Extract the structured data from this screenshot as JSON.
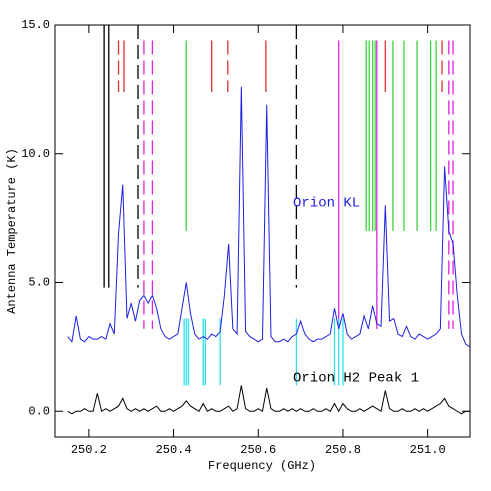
{
  "chart_data": {
    "type": "line",
    "xlabel": "Frequency (GHz)",
    "ylabel": "Antenna Temperature (K)",
    "xlim": [
      250.12,
      251.1
    ],
    "ylim": [
      -1,
      15
    ],
    "xticks": [
      250.2,
      250.4,
      250.6,
      250.8,
      {
        "value": 251,
        "label": "251.0"
      }
    ],
    "yticks": [
      {
        "value": 0,
        "label": "0.0"
      },
      {
        "value": 5,
        "label": "5.0"
      },
      {
        "value": 10,
        "label": "10.0"
      },
      {
        "value": 15,
        "label": "15.0"
      }
    ],
    "x": [
      250.15,
      250.16,
      250.17,
      250.18,
      250.19,
      250.2,
      250.21,
      250.22,
      250.23,
      250.24,
      250.25,
      250.26,
      250.27,
      250.28,
      250.29,
      250.3,
      250.31,
      250.32,
      250.33,
      250.34,
      250.35,
      250.36,
      250.37,
      250.38,
      250.39,
      250.4,
      250.41,
      250.42,
      250.43,
      250.44,
      250.45,
      250.46,
      250.47,
      250.48,
      250.49,
      250.5,
      250.51,
      250.52,
      250.53,
      250.54,
      250.55,
      250.56,
      250.57,
      250.58,
      250.59,
      250.6,
      250.61,
      250.62,
      250.63,
      250.64,
      250.65,
      250.66,
      250.67,
      250.68,
      250.69,
      250.7,
      250.71,
      250.72,
      250.73,
      250.74,
      250.75,
      250.76,
      250.77,
      250.78,
      250.79,
      250.8,
      250.81,
      250.82,
      250.83,
      250.84,
      250.85,
      250.86,
      250.87,
      250.88,
      250.89,
      250.9,
      250.91,
      250.92,
      250.93,
      250.94,
      250.95,
      250.96,
      250.97,
      250.98,
      250.99,
      251,
      251.01,
      251.02,
      251.03,
      251.04,
      251.05,
      251.06,
      251.07,
      251.08,
      251.09,
      251.1
    ],
    "series": [
      {
        "name": "Orion KL",
        "color": "#2020e0",
        "values": [
          2.9,
          2.7,
          3.7,
          2.8,
          2.7,
          2.9,
          2.8,
          2.8,
          2.9,
          2.8,
          3.4,
          3.0,
          6.9,
          8.8,
          3.6,
          4.2,
          3.5,
          4.3,
          4.5,
          4.2,
          4.5,
          4.0,
          3.2,
          2.9,
          2.8,
          2.9,
          3.0,
          4.0,
          5.0,
          3.8,
          3.0,
          2.8,
          2.9,
          2.8,
          3.0,
          2.9,
          3.1,
          4.5,
          6.5,
          3.2,
          3.0,
          12.6,
          3.1,
          2.9,
          2.8,
          2.7,
          2.8,
          11.9,
          2.9,
          2.7,
          2.7,
          2.8,
          2.7,
          2.9,
          3.0,
          3.5,
          3.0,
          2.8,
          2.7,
          2.8,
          2.8,
          2.9,
          3.0,
          4.0,
          3.2,
          3.8,
          3.0,
          2.8,
          2.9,
          3.0,
          3.7,
          3.2,
          4.1,
          3.4,
          3.3,
          8.0,
          3.5,
          3.6,
          3.0,
          2.9,
          3.3,
          2.9,
          2.8,
          3.0,
          2.9,
          2.8,
          2.9,
          3.0,
          3.2,
          9.5,
          7.0,
          6.5,
          4.5,
          3.0,
          2.6,
          2.5
        ]
      },
      {
        "name": "Orion H2 Peak 1",
        "color": "#000000",
        "values": [
          0.0,
          -0.1,
          0.0,
          0.0,
          0.1,
          0.0,
          0.0,
          0.7,
          0.0,
          0.1,
          0.0,
          0.1,
          0.2,
          0.5,
          0.1,
          0.0,
          0.1,
          0.0,
          0.1,
          0.0,
          0.1,
          0.2,
          0.0,
          0.0,
          0.1,
          0.0,
          0.1,
          0.2,
          0.4,
          0.2,
          0.1,
          0.0,
          0.3,
          0.0,
          0.1,
          0.0,
          0.0,
          0.1,
          0.2,
          0.0,
          0.1,
          1.0,
          0.1,
          0.0,
          0.0,
          0.1,
          0.0,
          0.9,
          0.1,
          0.0,
          0.0,
          0.1,
          0.0,
          0.1,
          0.0,
          0.1,
          0.0,
          0.0,
          0.1,
          0.0,
          0.0,
          0.1,
          0.0,
          0.3,
          0.0,
          0.3,
          0.1,
          0.0,
          0.0,
          0.1,
          0.0,
          0.1,
          0.2,
          0.1,
          0.0,
          0.8,
          0.1,
          0.0,
          0.0,
          0.1,
          0.0,
          0.0,
          0.1,
          0.0,
          0.1,
          0.0,
          0.1,
          0.2,
          0.3,
          0.5,
          0.2,
          0.1,
          0.0,
          -0.1,
          0.0,
          0.0
        ]
      }
    ],
    "line_markers": [
      {
        "x": 250.236,
        "color": "#000000",
        "dashed": false
      },
      {
        "x": 250.247,
        "color": "#000000",
        "dashed": false
      },
      {
        "x": 250.316,
        "color": "#000000",
        "dashed": true
      },
      {
        "x": 250.69,
        "color": "#000000",
        "dashed": true
      },
      {
        "x": 250.27,
        "color": "#e03030",
        "dashed": true
      },
      {
        "x": 250.283,
        "color": "#e03030",
        "dashed": false
      },
      {
        "x": 250.49,
        "color": "#e03030",
        "dashed": false
      },
      {
        "x": 250.528,
        "color": "#e03030",
        "dashed": true
      },
      {
        "x": 250.618,
        "color": "#e03030",
        "dashed": false
      },
      {
        "x": 250.9,
        "color": "#e03030",
        "dashed": false
      },
      {
        "x": 251.034,
        "color": "#e03030",
        "dashed": true
      },
      {
        "x": 250.33,
        "color": "#e020e0",
        "dashed": true
      },
      {
        "x": 250.35,
        "color": "#e020e0",
        "dashed": true
      },
      {
        "x": 250.79,
        "color": "#e020e0",
        "dashed": false
      },
      {
        "x": 250.88,
        "color": "#e020e0",
        "dashed": false
      },
      {
        "x": 251.05,
        "color": "#e020e0",
        "dashed": true
      },
      {
        "x": 251.06,
        "color": "#e020e0",
        "dashed": true
      },
      {
        "x": 250.43,
        "color": "#40d040",
        "dashed": false
      },
      {
        "x": 250.855,
        "color": "#40d040",
        "dashed": false
      },
      {
        "x": 250.862,
        "color": "#40d040",
        "dashed": false
      },
      {
        "x": 250.87,
        "color": "#40d040",
        "dashed": false
      },
      {
        "x": 250.876,
        "color": "#40d040",
        "dashed": false
      },
      {
        "x": 250.918,
        "color": "#40d040",
        "dashed": false
      },
      {
        "x": 250.944,
        "color": "#40d040",
        "dashed": false
      },
      {
        "x": 250.975,
        "color": "#40d040",
        "dashed": false
      },
      {
        "x": 251.007,
        "color": "#40d040",
        "dashed": false
      },
      {
        "x": 251.02,
        "color": "#40d040",
        "dashed": false
      },
      {
        "x": 250.425,
        "color": "#30e0f0",
        "dashed": false
      },
      {
        "x": 250.43,
        "color": "#30e0f0",
        "dashed": false
      },
      {
        "x": 250.435,
        "color": "#30e0f0",
        "dashed": false
      },
      {
        "x": 250.47,
        "color": "#30e0f0",
        "dashed": false
      },
      {
        "x": 250.475,
        "color": "#30e0f0",
        "dashed": false
      },
      {
        "x": 250.51,
        "color": "#30e0f0",
        "dashed": false
      },
      {
        "x": 250.69,
        "color": "#30e0f0",
        "dashed": false
      },
      {
        "x": 250.78,
        "color": "#30e0f0",
        "dashed": false
      },
      {
        "x": 250.79,
        "color": "#30e0f0",
        "dashed": false
      },
      {
        "x": 250.8,
        "color": "#30e0f0",
        "dashed": false
      }
    ]
  }
}
